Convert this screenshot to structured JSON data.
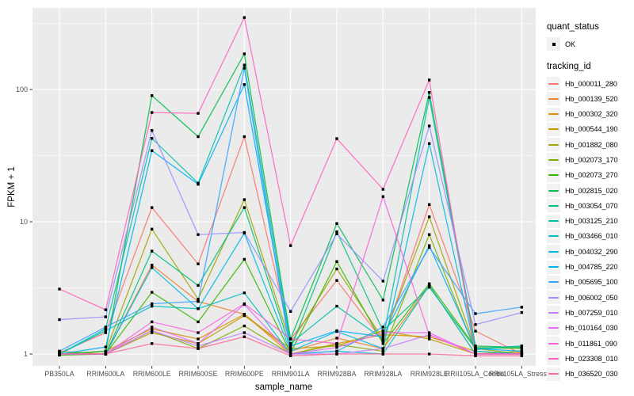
{
  "chart_data": {
    "type": "line",
    "title": "",
    "xlabel": "sample_name",
    "ylabel": "FPKM + 1",
    "y_scale": "log10",
    "y_ticks": [
      1,
      10,
      100
    ],
    "y_minor_ticks": [
      3.162,
      31.623,
      316.228
    ],
    "ylim": [
      0.82,
      414
    ],
    "grid": "on",
    "legend_position": "right",
    "point_shape": "filled-square",
    "point_color": "#000000",
    "categories": [
      "PB350LA",
      "RRIM600LA",
      "RRIM600LE",
      "RRIM600SE",
      "RRIM600PE",
      "RRIM901LA",
      "RRIM928BA",
      "RRIM928LA",
      "RRIM928LE",
      "RRII105LA_Control",
      "RRII105LA_Stressed"
    ],
    "series": [
      {
        "name": "Hb_000011_280",
        "color": "#F8766D",
        "values": [
          1.02,
          1.45,
          12.8,
          4.8,
          44,
          1.3,
          3.6,
          1.25,
          13.5,
          1.49,
          1.0
        ]
      },
      {
        "name": "Hb_000139_520",
        "color": "#EA8331",
        "values": [
          1.0,
          1.0,
          4.7,
          2.5,
          2.0,
          1.05,
          1.32,
          1.1,
          3.3,
          1.0,
          1.02
        ]
      },
      {
        "name": "Hb_000302_320",
        "color": "#D89000",
        "values": [
          1.0,
          1.05,
          1.55,
          1.3,
          2.0,
          1.0,
          1.2,
          1.4,
          1.35,
          1.05,
          1.0
        ]
      },
      {
        "name": "Hb_000544_190",
        "color": "#C09B00",
        "values": [
          1.05,
          1.0,
          1.45,
          1.2,
          1.95,
          1.1,
          1.15,
          1.5,
          1.3,
          1.0,
          1.05
        ]
      },
      {
        "name": "Hb_001882_080",
        "color": "#A3A500",
        "values": [
          1.0,
          1.05,
          8.8,
          2.6,
          14.7,
          1.2,
          4.4,
          1.3,
          10.9,
          1.1,
          1.0
        ]
      },
      {
        "name": "Hb_002073_170",
        "color": "#7CAE00",
        "values": [
          1.0,
          1.0,
          1.5,
          1.1,
          1.63,
          1.0,
          1.18,
          1.05,
          8.0,
          1.05,
          1.0
        ]
      },
      {
        "name": "Hb_002073_270",
        "color": "#39B600",
        "values": [
          0.98,
          1.0,
          2.93,
          1.75,
          5.2,
          1.02,
          5.0,
          1.2,
          3.4,
          1.12,
          1.1
        ]
      },
      {
        "name": "Hb_002815_020",
        "color": "#00BB4E",
        "values": [
          1.0,
          1.05,
          90,
          44,
          186,
          1.3,
          9.7,
          2.56,
          95,
          1.15,
          1.12
        ]
      },
      {
        "name": "Hb_003054_070",
        "color": "#00BF7D",
        "values": [
          1.0,
          1.0,
          6.0,
          3.3,
          12.8,
          1.1,
          8.4,
          1.5,
          3.2,
          1.1,
          1.15
        ]
      },
      {
        "name": "Hb_003125_210",
        "color": "#00C1A3",
        "values": [
          1.0,
          1.55,
          42.7,
          19.6,
          153,
          1.2,
          2.3,
          1.3,
          87,
          1.08,
          1.15
        ]
      },
      {
        "name": "Hb_003466_010",
        "color": "#00BFC4",
        "values": [
          1.0,
          1.5,
          2.3,
          2.2,
          2.9,
          1.0,
          1.05,
          1.0,
          3.3,
          1.0,
          1.0
        ]
      },
      {
        "name": "Hb_004032_290",
        "color": "#00BAE0",
        "values": [
          1.0,
          1.0,
          4.5,
          2.2,
          8.2,
          1.05,
          1.48,
          1.1,
          39,
          1.05,
          1.0
        ]
      },
      {
        "name": "Hb_004785_220",
        "color": "#00B0F6",
        "values": [
          1.0,
          1.13,
          34.5,
          19.2,
          109,
          1.15,
          1.5,
          1.35,
          6.6,
          1.1,
          1.05
        ]
      },
      {
        "name": "Hb_005695_100",
        "color": "#35A2FF",
        "values": [
          1.05,
          1.6,
          2.4,
          2.5,
          145,
          1.0,
          1.05,
          1.6,
          6.4,
          2.02,
          2.26
        ]
      },
      {
        "name": "Hb_006002_050",
        "color": "#9590FF",
        "values": [
          1.82,
          1.91,
          49,
          8.0,
          8.3,
          2.1,
          8.1,
          3.56,
          53,
          1.67,
          2.06
        ]
      },
      {
        "name": "Hb_007259_010",
        "color": "#C77CFF",
        "values": [
          1.0,
          1.0,
          1.5,
          1.15,
          1.45,
          1.0,
          1.0,
          1.1,
          1.4,
          1.0,
          1.0
        ]
      },
      {
        "name": "Hb_010164_030",
        "color": "#E76BF3",
        "values": [
          1.0,
          1.0,
          1.6,
          1.2,
          2.37,
          1.0,
          1.12,
          1.45,
          1.45,
          1.0,
          1.0
        ]
      },
      {
        "name": "Hb_011861_090",
        "color": "#FA62DB",
        "values": [
          1.0,
          1.0,
          1.75,
          1.45,
          2.4,
          1.3,
          1.2,
          15.5,
          1.4,
          1.0,
          1.0
        ]
      },
      {
        "name": "Hb_023308_010",
        "color": "#FF62BC",
        "values": [
          3.1,
          2.16,
          67,
          66,
          350,
          6.6,
          42.5,
          17.6,
          118,
          1.0,
          1.0
        ]
      },
      {
        "name": "Hb_036520_030",
        "color": "#FF6A98",
        "values": [
          1.0,
          1.0,
          1.2,
          1.1,
          1.35,
          0.97,
          1.0,
          1.0,
          1.0,
          0.97,
          0.97
        ]
      }
    ]
  },
  "legend": {
    "quant_status_title": "quant_status",
    "quant_status_items": [
      {
        "label": "OK"
      }
    ],
    "tracking_id_title": "tracking_id"
  },
  "colors": {
    "panel_bg": "#EBEBEB",
    "grid": "#FFFFFF",
    "axis_text": "#4D4D4D",
    "tick": "#333333",
    "key_bg": "#F2F2F2",
    "point": "#000000"
  }
}
